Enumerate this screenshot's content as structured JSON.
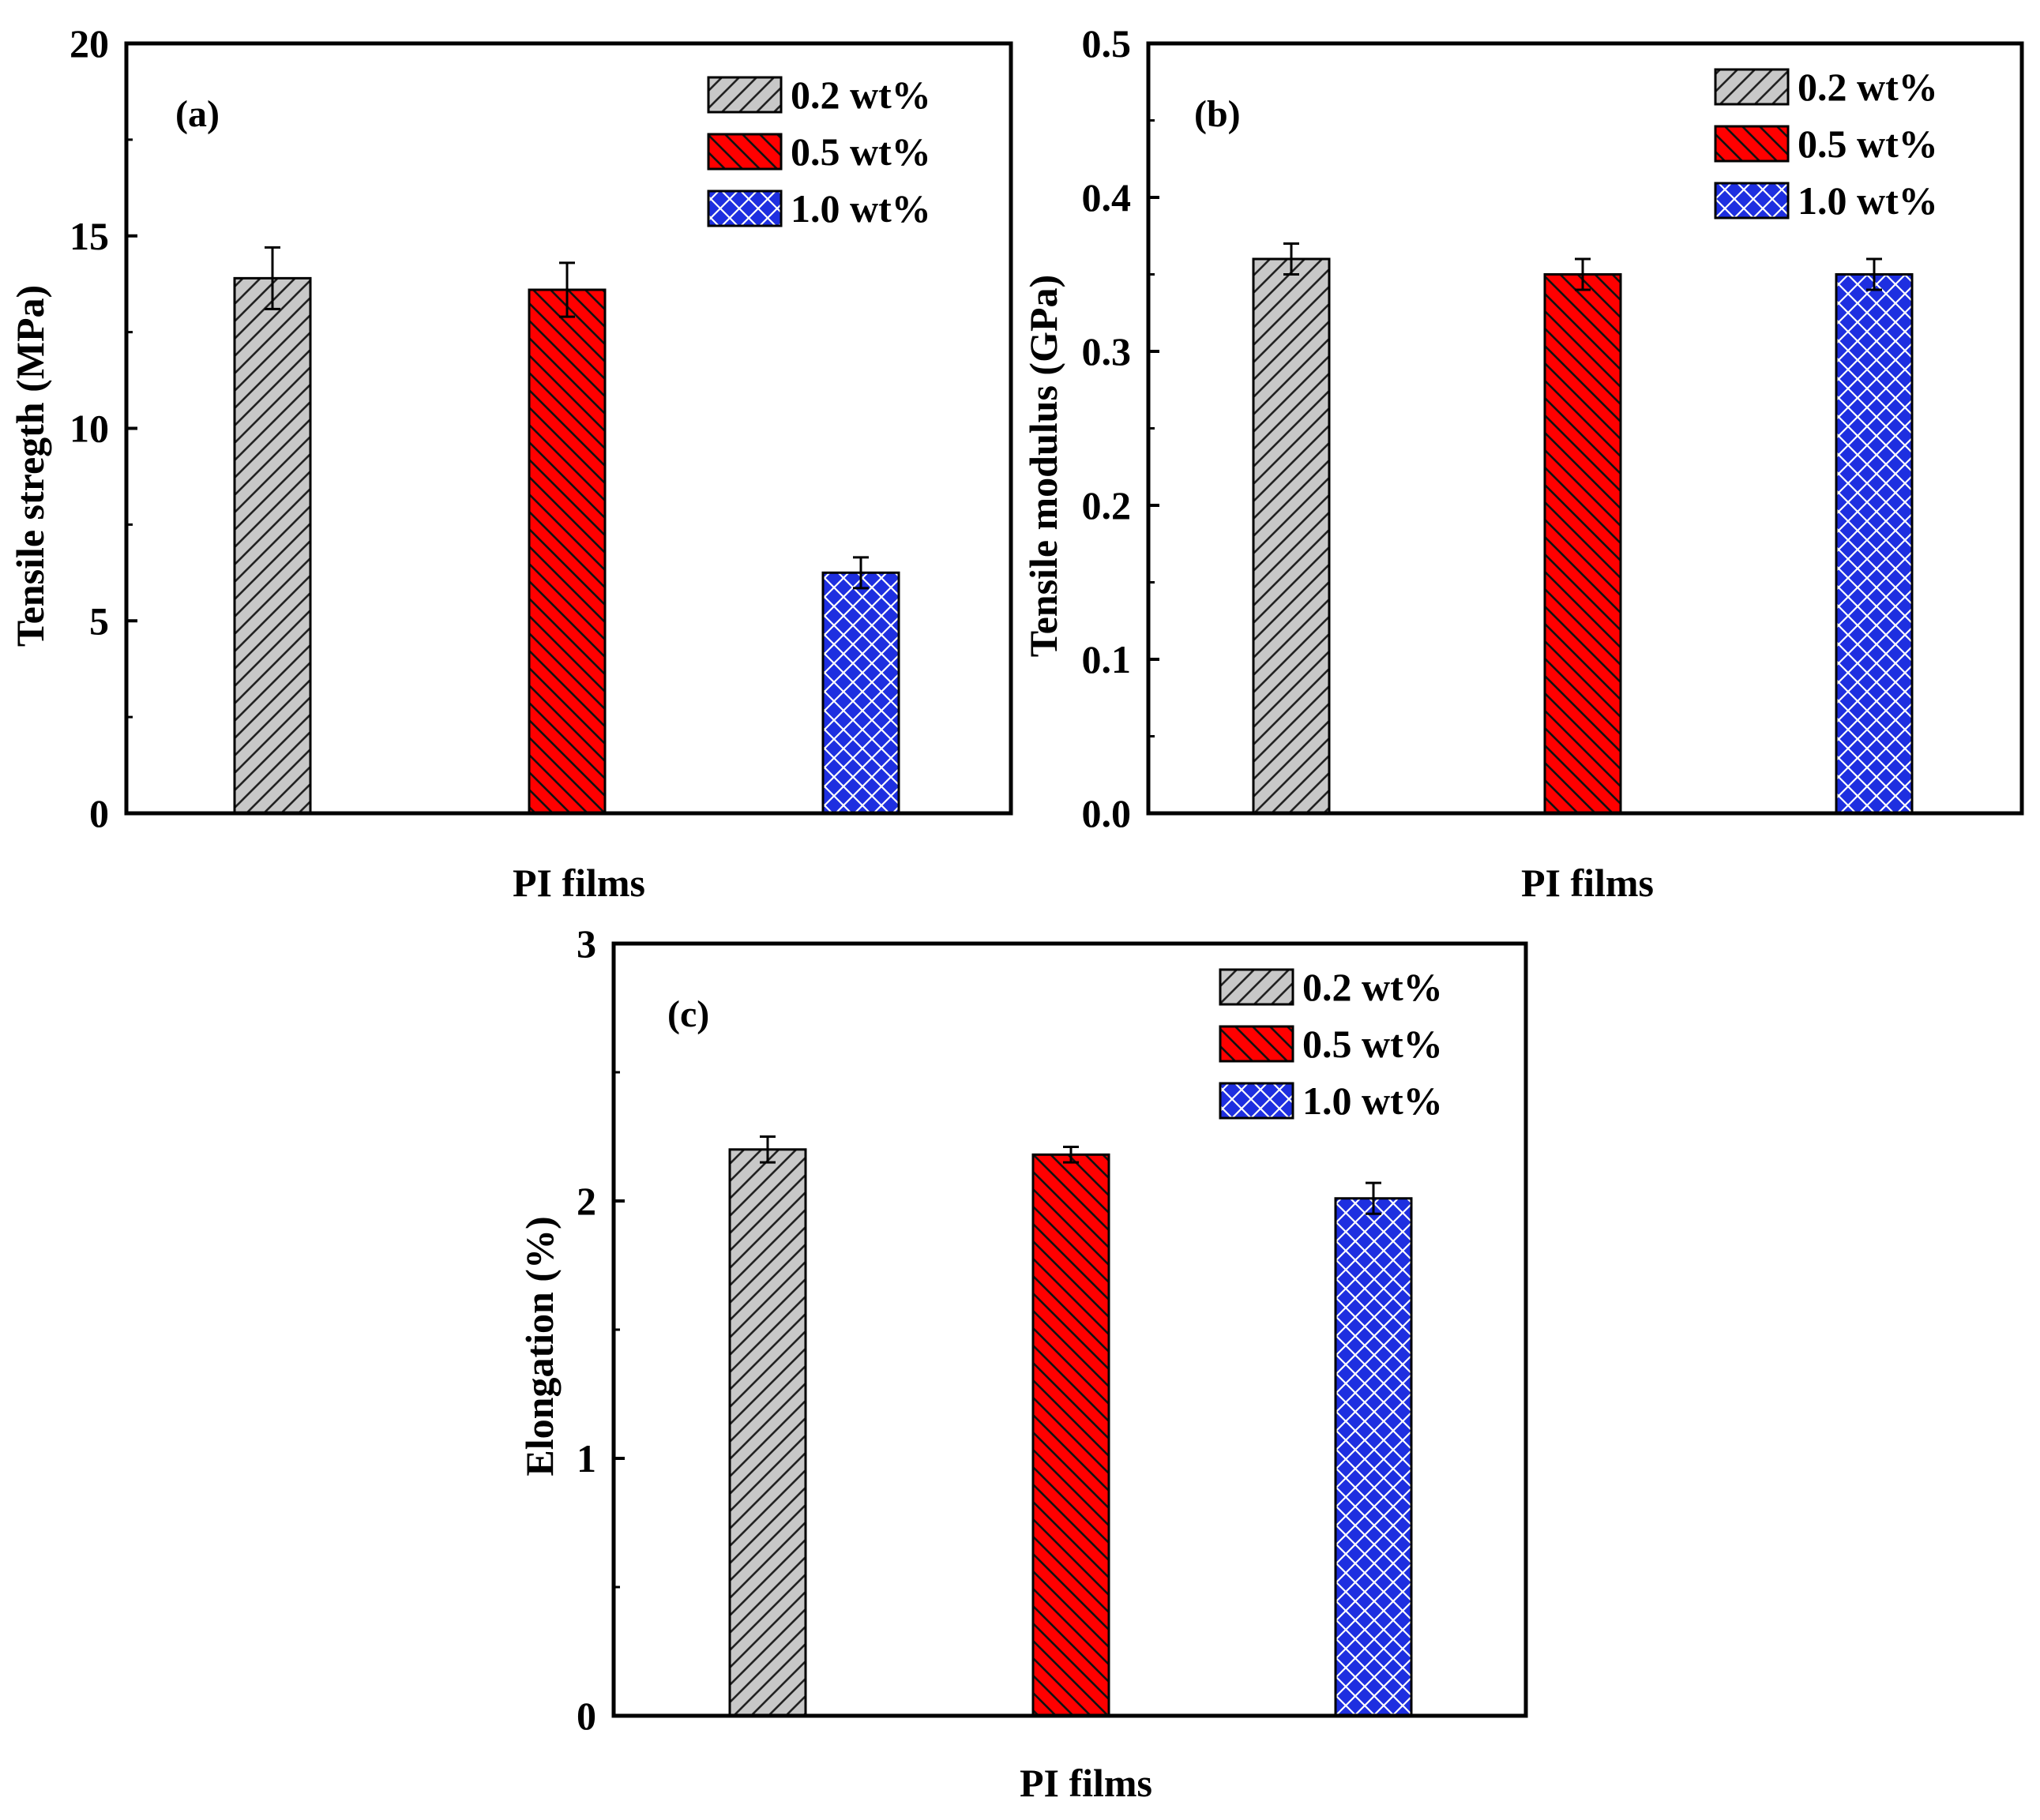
{
  "colors": {
    "gray": "#c8c8c8",
    "red": "#ff0000",
    "blue": "#1e2fe0",
    "axis": "#000000"
  },
  "chart_data": [
    {
      "type": "bar",
      "panel_label": "(a)",
      "xlabel": "PI films",
      "ylabel": "Tensile stregth (MPa)",
      "ylim": [
        0,
        20
      ],
      "yticks": [
        "0",
        "5",
        "10",
        "15",
        "20"
      ],
      "categories": [
        "0.2 wt%",
        "0.5 wt%",
        "1.0 wt%"
      ],
      "values": [
        13.9,
        13.6,
        6.25
      ],
      "errors": [
        0.8,
        0.7,
        0.4
      ],
      "legend": [
        "0.2 wt%",
        "0.5 wt%",
        "1.0 wt%"
      ],
      "legend_position": "top-right"
    },
    {
      "type": "bar",
      "panel_label": "(b)",
      "xlabel": "PI films",
      "ylabel": "Tensile modulus (GPa)",
      "ylim": [
        0,
        0.5
      ],
      "yticks": [
        "0.0",
        "0.1",
        "0.2",
        "0.3",
        "0.4",
        "0.5"
      ],
      "categories": [
        "0.2 wt%",
        "0.5 wt%",
        "1.0 wt%"
      ],
      "values": [
        0.36,
        0.35,
        0.35
      ],
      "errors": [
        0.01,
        0.01,
        0.01
      ],
      "legend": [
        "0.2 wt%",
        "0.5 wt%",
        "1.0 wt%"
      ],
      "legend_position": "top-right"
    },
    {
      "type": "bar",
      "panel_label": "(c)",
      "xlabel": "PI films",
      "ylabel": "Elongation (%)",
      "ylim": [
        0,
        3
      ],
      "yticks": [
        "0",
        "1",
        "2",
        "3"
      ],
      "categories": [
        "0.2 wt%",
        "0.5 wt%",
        "1.0 wt%"
      ],
      "values": [
        2.2,
        2.18,
        2.01
      ],
      "errors": [
        0.05,
        0.03,
        0.06
      ],
      "legend": [
        "0.2 wt%",
        "0.5 wt%",
        "1.0 wt%"
      ],
      "legend_position": "top-right"
    }
  ]
}
